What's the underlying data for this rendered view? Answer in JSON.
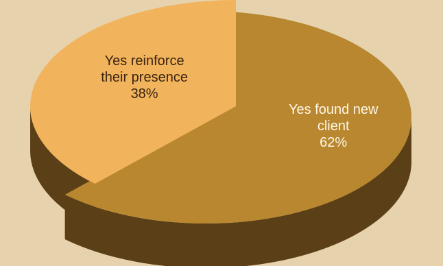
{
  "chart_data": {
    "type": "pie",
    "title": "",
    "slices": [
      {
        "lines": [
          "Yes found new",
          "client"
        ],
        "percent_label": "62%",
        "value": 62,
        "color": "#b8872f",
        "side_color": "#5b3f16",
        "label_color": "#fff8e6"
      },
      {
        "lines": [
          "Yes reinforce",
          "their presence"
        ],
        "percent_label": "38%",
        "value": 38,
        "color": "#f2b35d",
        "side_color": "#5b3f16",
        "label_color": "#3a2410"
      }
    ],
    "legend": "none",
    "background_color": "#e6d3ae"
  }
}
